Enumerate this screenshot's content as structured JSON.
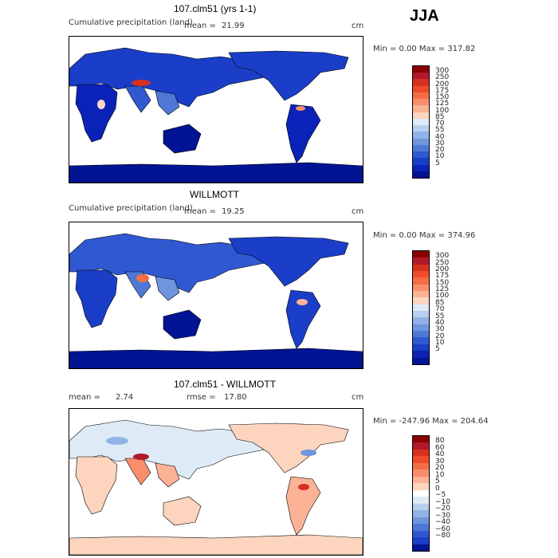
{
  "season": "JJA",
  "panels": [
    {
      "title": "107.clm51 (yrs 1-1)",
      "subtitle": "Cumulative precipitation (land)",
      "stat_label": "mean =",
      "stat_value": "21.99",
      "units": "cm",
      "minmax": "Min =    0.00 Max = 317.82",
      "colors": [
        "#8b0000",
        "#b2182b",
        "#d7301f",
        "#ef4b2b",
        "#f46d43",
        "#f98e6d",
        "#fcb295",
        "#fdd5bf",
        "#deebf7",
        "#b8cfef",
        "#90b2e6",
        "#6f95dd",
        "#4f78d6",
        "#3058d0",
        "#1a3ec8",
        "#0a22b8",
        "#001494"
      ],
      "labels": [
        "300",
        "250",
        "200",
        "175",
        "150",
        "125",
        "100",
        "85",
        "70",
        "55",
        "40",
        "30",
        "20",
        "10",
        "5"
      ]
    },
    {
      "title": "WILLMOTT",
      "subtitle": "Cumulative precipitation (land)",
      "stat_label": "mean =",
      "stat_value": "19.25",
      "units": "cm",
      "minmax": "Min =    0.00 Max = 374.96",
      "colors": [
        "#8b0000",
        "#b2182b",
        "#d7301f",
        "#ef4b2b",
        "#f46d43",
        "#f98e6d",
        "#fcb295",
        "#fdd5bf",
        "#deebf7",
        "#b8cfef",
        "#90b2e6",
        "#6f95dd",
        "#4f78d6",
        "#3058d0",
        "#1a3ec8",
        "#0a22b8",
        "#001494"
      ],
      "labels": [
        "300",
        "250",
        "200",
        "175",
        "150",
        "125",
        "100",
        "85",
        "70",
        "55",
        "40",
        "30",
        "20",
        "10",
        "5"
      ]
    },
    {
      "title": "107.clm51 - WILLMOTT",
      "stat_label": "mean =",
      "stat_value": "2.74",
      "rmse_label": "rmse =",
      "rmse_value": "17.80",
      "units": "cm",
      "minmax": "Min = -247.96 Max = 204.64",
      "colors": [
        "#8b0000",
        "#b2182b",
        "#d7301f",
        "#ef4b2b",
        "#f46d43",
        "#f98e6d",
        "#fcb295",
        "#fdd5bf",
        "#ffffff",
        "#deebf7",
        "#b8cfef",
        "#90b2e6",
        "#6f95dd",
        "#4f78d6",
        "#3058d0",
        "#1a3ec8",
        "#001494"
      ],
      "labels": [
        "80",
        "60",
        "40",
        "30",
        "20",
        "10",
        "5",
        "0",
        "−5",
        "−10",
        "−20",
        "−30",
        "−40",
        "−60",
        "−80"
      ]
    }
  ]
}
